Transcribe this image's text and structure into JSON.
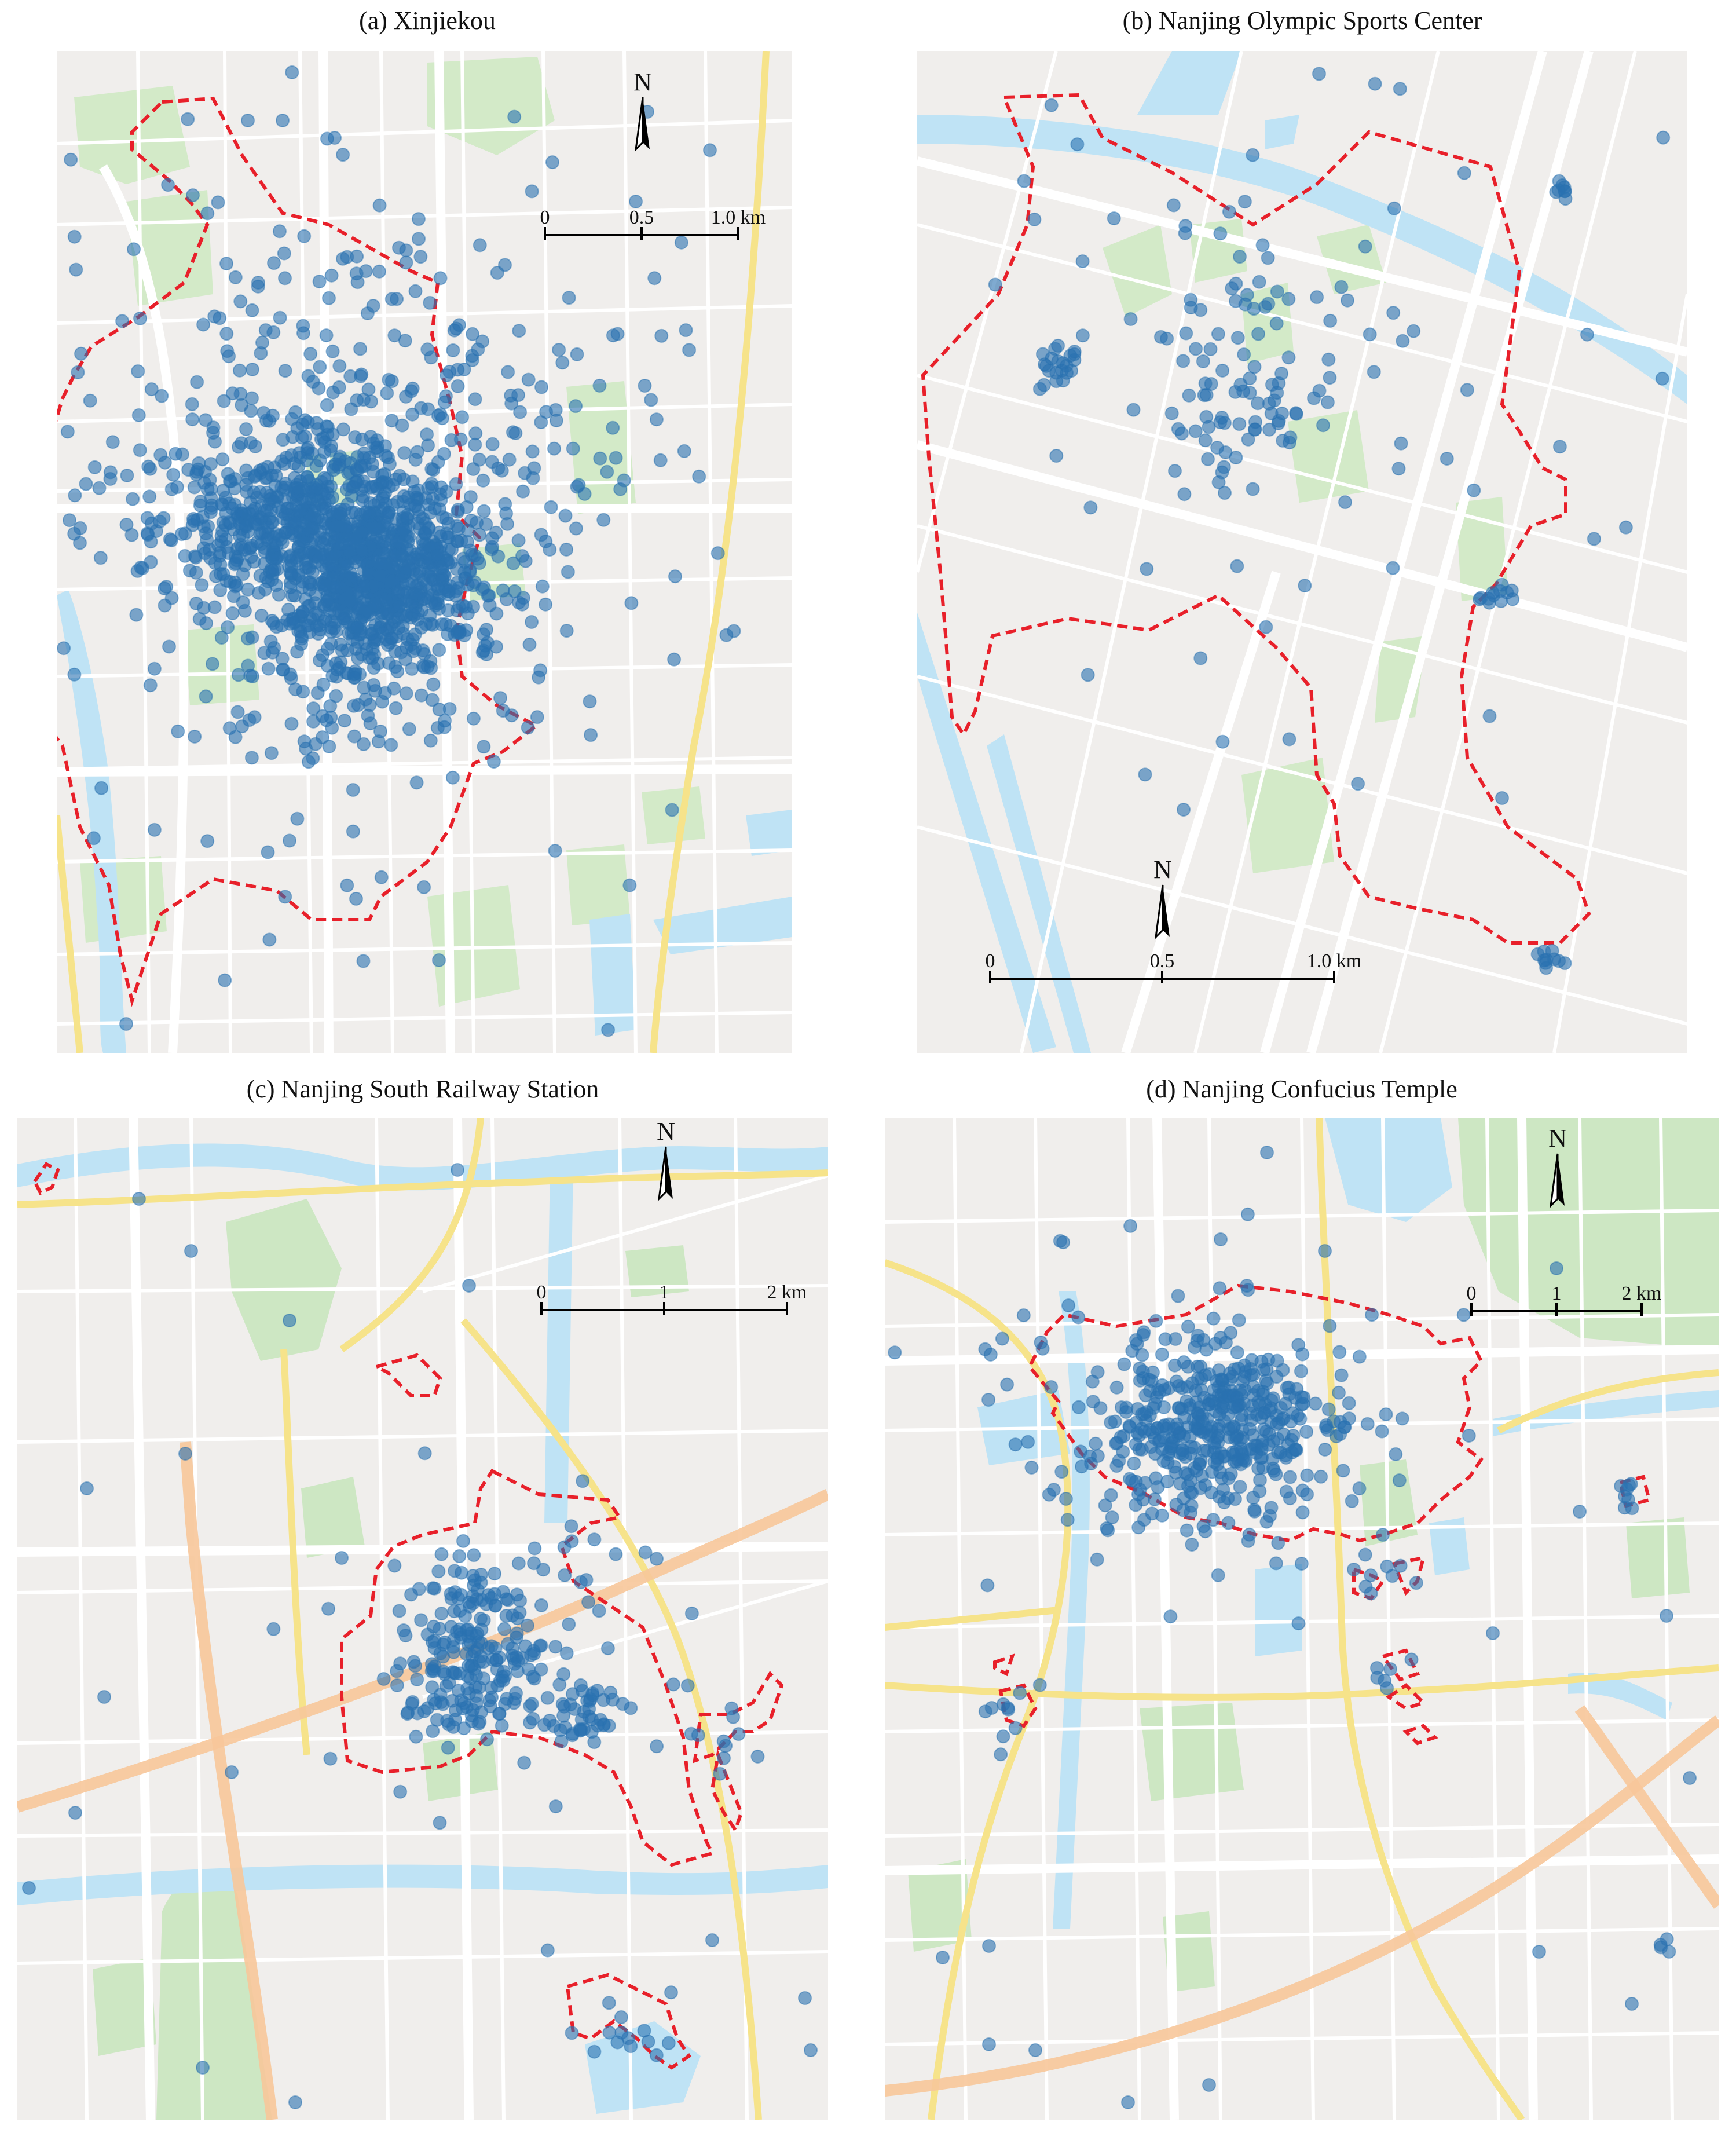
{
  "panels": [
    {
      "title": "(a) Xinjiekou",
      "north_label": "N",
      "scale_ticks": [
        "0",
        "0.5",
        "1.0 km"
      ],
      "colors": {
        "base": "#f0eeec",
        "road": "#ffffff",
        "arterial": "#f6e38a",
        "water": "#bfe3f5",
        "green": "#cfe9c4",
        "point": "#2a72b0",
        "boundary": "#e8202a"
      }
    },
    {
      "title": "(b) Nanjing Olympic Sports Center",
      "north_label": "N",
      "scale_ticks": [
        "0",
        "0.5",
        "1.0 km"
      ],
      "colors": {
        "base": "#f0eeec",
        "road": "#ffffff",
        "arterial": "#f6e38a",
        "water": "#bfe3f5",
        "green": "#cfe9c4",
        "point": "#2a72b0",
        "boundary": "#e8202a"
      }
    },
    {
      "title": "(c) Nanjing South Railway Station",
      "north_label": "N",
      "scale_ticks": [
        "0",
        "1",
        "2 km"
      ],
      "colors": {
        "base": "#f0eeec",
        "road": "#ffffff",
        "arterial": "#f6e38a",
        "highway": "#f7c79a",
        "water": "#bfe3f5",
        "green": "#c9e6bf",
        "point": "#2a72b0",
        "boundary": "#e8202a"
      }
    },
    {
      "title": "(d) Nanjing Confucius Temple",
      "north_label": "N",
      "scale_ticks": [
        "0",
        "1",
        "2 km"
      ],
      "colors": {
        "base": "#f0eeec",
        "road": "#ffffff",
        "arterial": "#f6e38a",
        "highway": "#f7c79a",
        "water": "#bfe3f5",
        "green": "#c9e6bf",
        "point": "#2a72b0",
        "boundary": "#e8202a"
      }
    }
  ]
}
